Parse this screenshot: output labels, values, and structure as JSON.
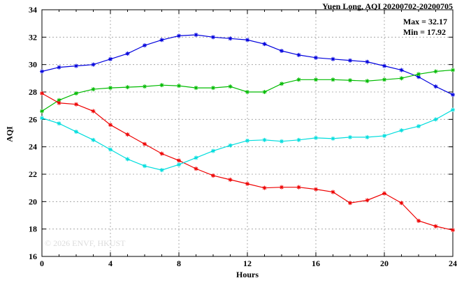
{
  "chart_data": {
    "type": "line",
    "title": "Yuen Long, AQI 20200702-20200705",
    "xlabel": "Hours",
    "ylabel": "AQI",
    "xlim": [
      0,
      24
    ],
    "ylim": [
      16,
      34
    ],
    "xticks": [
      0,
      4,
      8,
      12,
      16,
      20,
      24
    ],
    "yticks": [
      16,
      18,
      20,
      22,
      24,
      26,
      28,
      30,
      32,
      34
    ],
    "grid": true,
    "legend_position": "none",
    "marker": "asterisk",
    "x": [
      0,
      1,
      2,
      3,
      4,
      5,
      6,
      7,
      8,
      9,
      10,
      11,
      12,
      13,
      14,
      15,
      16,
      17,
      18,
      19,
      20,
      21,
      22,
      23,
      24
    ],
    "series": [
      {
        "name": "series-blue",
        "color": "#0000dd",
        "values": [
          29.5,
          29.8,
          29.9,
          30.0,
          30.4,
          30.8,
          31.4,
          31.8,
          32.1,
          32.17,
          32.0,
          31.9,
          31.8,
          31.5,
          31.0,
          30.7,
          30.5,
          30.4,
          30.3,
          30.2,
          29.9,
          29.6,
          29.1,
          28.4,
          27.8
        ]
      },
      {
        "name": "series-green",
        "color": "#00bb00",
        "values": [
          26.6,
          27.4,
          27.9,
          28.2,
          28.3,
          28.35,
          28.4,
          28.5,
          28.45,
          28.3,
          28.3,
          28.4,
          28.0,
          28.0,
          28.6,
          28.9,
          28.9,
          28.9,
          28.85,
          28.8,
          28.9,
          29.0,
          29.3,
          29.5,
          29.6
        ]
      },
      {
        "name": "series-red",
        "color": "#ee0000",
        "values": [
          27.9,
          27.2,
          27.1,
          26.6,
          25.6,
          24.9,
          24.2,
          23.5,
          23.0,
          22.4,
          21.9,
          21.6,
          21.3,
          21.0,
          21.05,
          21.05,
          20.9,
          20.7,
          19.9,
          20.1,
          20.6,
          19.9,
          18.6,
          18.2,
          17.92
        ]
      },
      {
        "name": "series-cyan",
        "color": "#00dddd",
        "values": [
          26.1,
          25.7,
          25.1,
          24.5,
          23.8,
          23.1,
          22.6,
          22.3,
          22.7,
          23.2,
          23.7,
          24.1,
          24.45,
          24.5,
          24.4,
          24.5,
          24.65,
          24.6,
          24.7,
          24.7,
          24.8,
          25.2,
          25.5,
          26.0,
          26.7
        ]
      }
    ],
    "annotations": {
      "max": "Max = 32.17",
      "min": "Min = 17.92"
    },
    "watermark": "© 2026 ENVF, HKUST"
  }
}
